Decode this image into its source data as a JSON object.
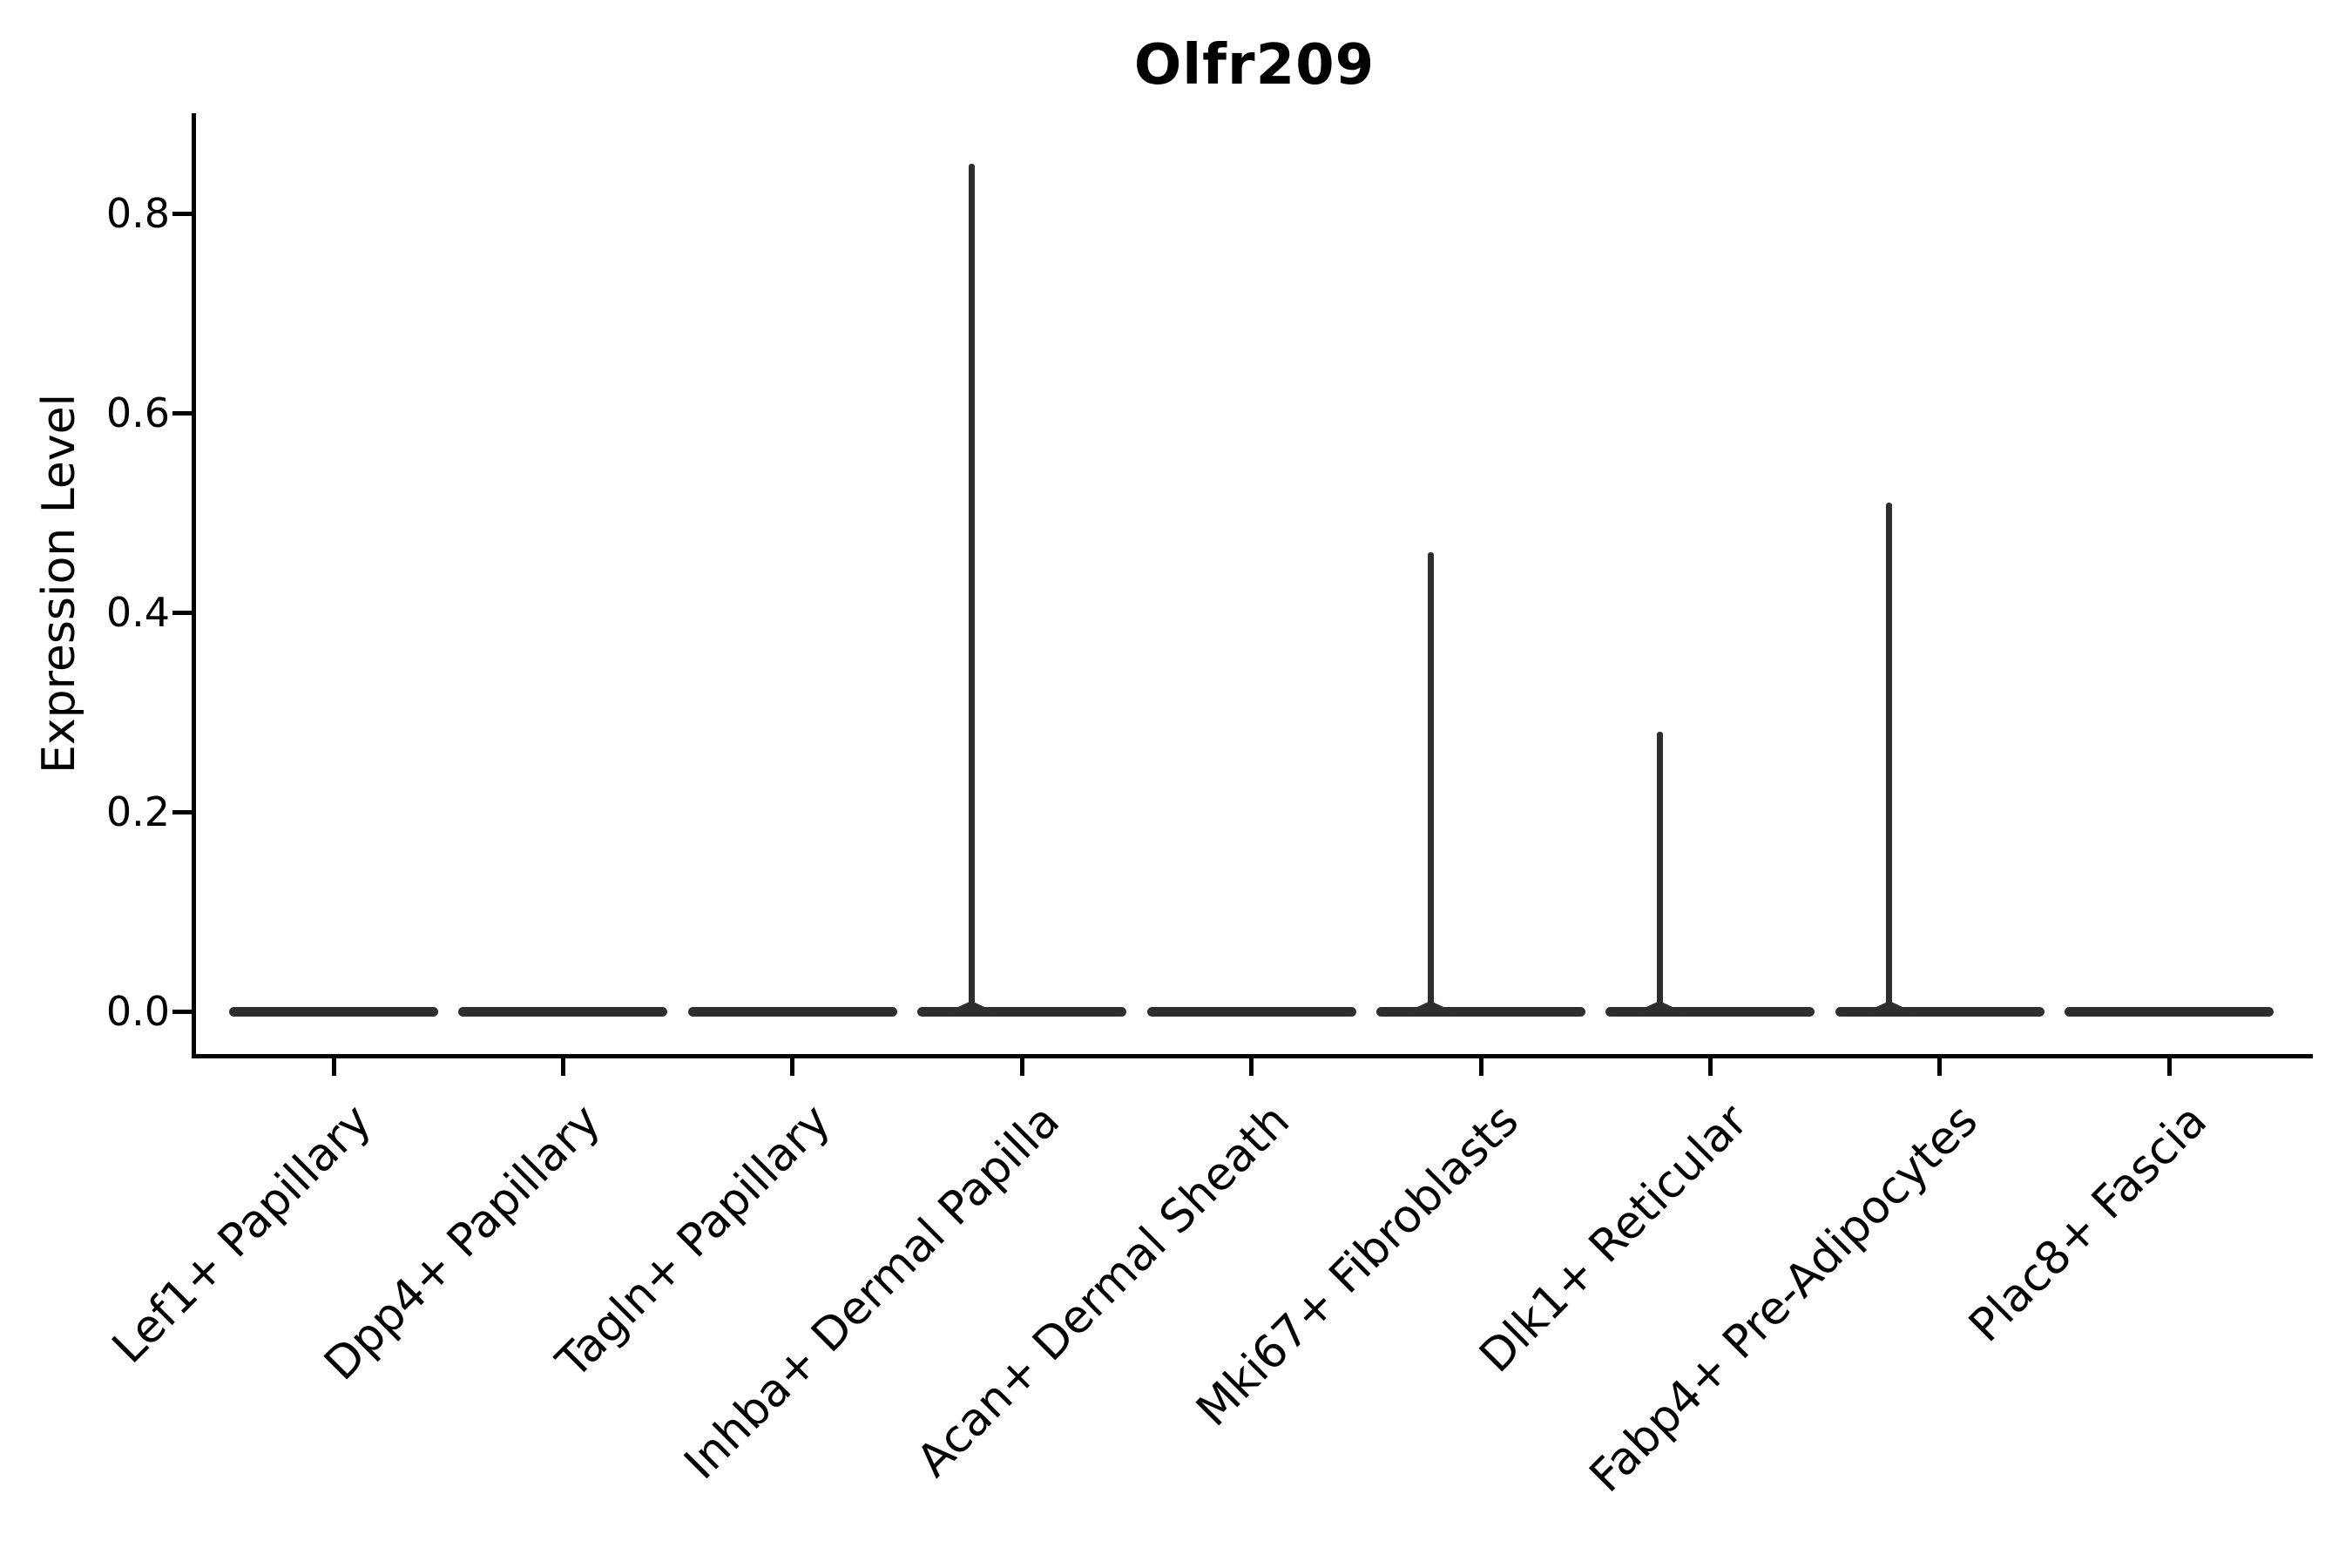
{
  "chart_data": {
    "type": "violin",
    "title": "Olfr209",
    "xlabel": "",
    "ylabel": "Expression Level",
    "categories": [
      "Lef1+ Papillary",
      "Dpp4+ Papillary",
      "Tagln+ Papillary",
      "Inhba+ Dermal Papilla",
      "Acan+ Dermal Sheath",
      "Mki67+ Fibroblasts",
      "Dlk1+ Reticular",
      "Fabp4+ Pre-Adipocytes",
      "Plac8+ Fascia"
    ],
    "series": [
      {
        "category": "Lef1+ Papillary",
        "bulk_expression": 0.0,
        "max_expression": 0.0
      },
      {
        "category": "Dpp4+ Papillary",
        "bulk_expression": 0.0,
        "max_expression": 0.0
      },
      {
        "category": "Tagln+ Papillary",
        "bulk_expression": 0.0,
        "max_expression": 0.0
      },
      {
        "category": "Inhba+ Dermal Papilla",
        "bulk_expression": 0.0,
        "max_expression": 0.85
      },
      {
        "category": "Acan+ Dermal Sheath",
        "bulk_expression": 0.0,
        "max_expression": 0.0
      },
      {
        "category": "Mki67+ Fibroblasts",
        "bulk_expression": 0.0,
        "max_expression": 0.46
      },
      {
        "category": "Dlk1+ Reticular",
        "bulk_expression": 0.0,
        "max_expression": 0.28
      },
      {
        "category": "Fabp4+ Pre-Adipocytes",
        "bulk_expression": 0.0,
        "max_expression": 0.51
      },
      {
        "category": "Plac8+ Fascia",
        "bulk_expression": 0.0,
        "max_expression": 0.0
      }
    ],
    "y_ticks": [
      0.0,
      0.2,
      0.4,
      0.6,
      0.8
    ],
    "ylim": [
      0.0,
      0.9
    ],
    "grid": false,
    "legend": false,
    "violin_color": "#2e2e2e",
    "axis_color": "#000000",
    "background_color": "#ffffff"
  }
}
